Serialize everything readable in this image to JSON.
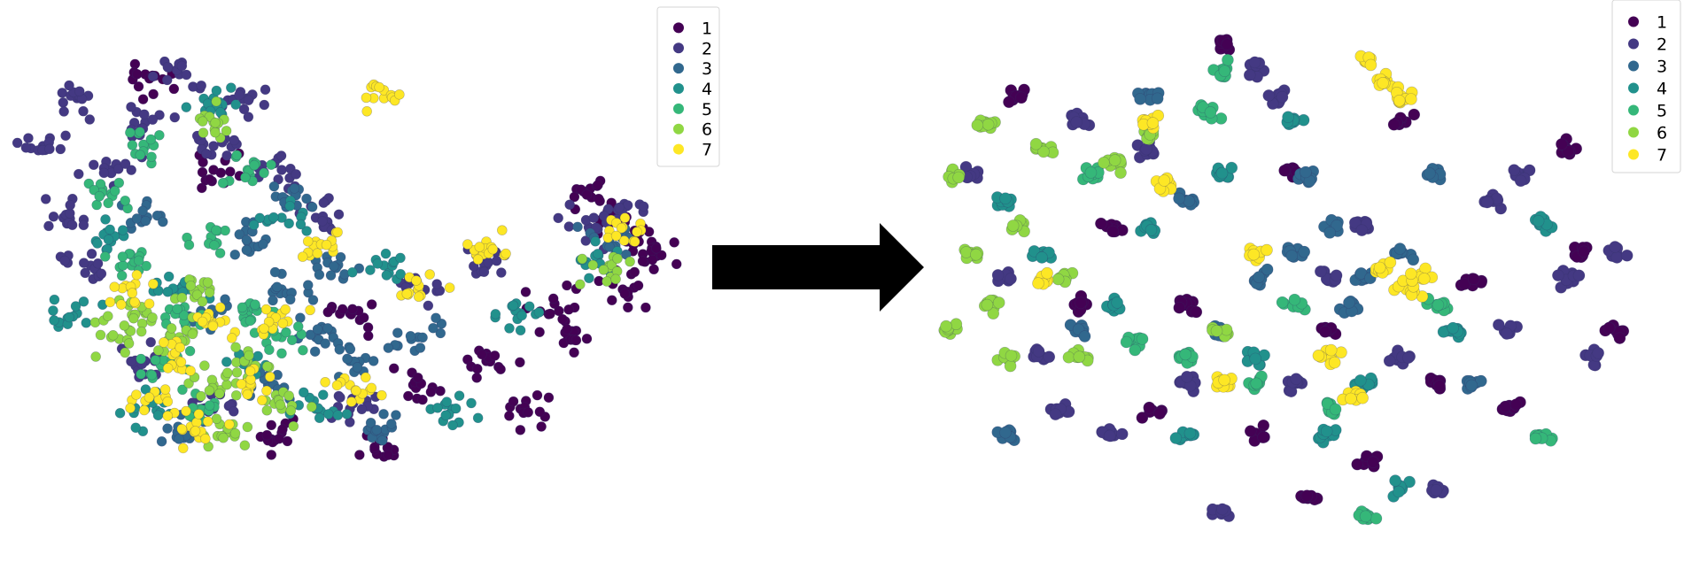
{
  "chart_data": [
    {
      "type": "scatter",
      "title": "",
      "xlabel": "",
      "ylabel": "",
      "axes_visible": false,
      "grid": false,
      "legend_placement": "top-right",
      "colormap": "viridis",
      "series": [
        {
          "name": "1",
          "color": "#440154",
          "points": [
            [
              88,
              60
            ],
            [
              92,
              55
            ],
            [
              85,
              65
            ],
            [
              90,
              45
            ],
            [
              80,
              42
            ],
            [
              70,
              30
            ],
            [
              60,
              25
            ],
            [
              55,
              10
            ],
            [
              75,
              20
            ],
            [
              40,
              15
            ],
            [
              20,
              90
            ],
            [
              30,
              70
            ],
            [
              82,
              35
            ],
            [
              95,
              52
            ],
            [
              50,
              40
            ]
          ]
        },
        {
          "name": "2",
          "color": "#443983",
          "points": [
            [
              10,
              85
            ],
            [
              20,
              80
            ],
            [
              30,
              75
            ],
            [
              15,
              70
            ],
            [
              35,
              85
            ],
            [
              25,
              90
            ],
            [
              5,
              75
            ],
            [
              40,
              70
            ],
            [
              45,
              60
            ],
            [
              12,
              50
            ],
            [
              20,
              30
            ],
            [
              30,
              20
            ],
            [
              85,
              58
            ],
            [
              90,
              62
            ],
            [
              70,
              50
            ],
            [
              60,
              45
            ],
            [
              50,
              20
            ],
            [
              8,
              60
            ]
          ]
        },
        {
          "name": "3",
          "color": "#31688e",
          "points": [
            [
              35,
              55
            ],
            [
              40,
              45
            ],
            [
              45,
              35
            ],
            [
              42,
              65
            ],
            [
              38,
              25
            ],
            [
              50,
              30
            ],
            [
              30,
              40
            ],
            [
              48,
              50
            ],
            [
              55,
              15
            ],
            [
              20,
              60
            ],
            [
              88,
              55
            ],
            [
              60,
              35
            ],
            [
              25,
              15
            ]
          ]
        },
        {
          "name": "4",
          "color": "#21918c",
          "points": [
            [
              15,
              55
            ],
            [
              25,
              45
            ],
            [
              35,
              30
            ],
            [
              10,
              40
            ],
            [
              20,
              20
            ],
            [
              40,
              60
            ],
            [
              30,
              85
            ],
            [
              45,
              20
            ],
            [
              65,
              20
            ],
            [
              75,
              40
            ],
            [
              86,
              52
            ],
            [
              55,
              50
            ]
          ]
        },
        {
          "name": "5",
          "color": "#35b779",
          "points": [
            [
              18,
              50
            ],
            [
              25,
              40
            ],
            [
              30,
              55
            ],
            [
              22,
              30
            ],
            [
              35,
              40
            ],
            [
              15,
              65
            ],
            [
              28,
              20
            ],
            [
              40,
              35
            ],
            [
              20,
              75
            ],
            [
              35,
              70
            ]
          ]
        },
        {
          "name": "6",
          "color": "#90d743",
          "points": [
            [
              25,
              35
            ],
            [
              30,
              25
            ],
            [
              20,
              40
            ],
            [
              35,
              30
            ],
            [
              28,
              45
            ],
            [
              15,
              35
            ],
            [
              40,
              20
            ],
            [
              32,
              15
            ],
            [
              88,
              50
            ],
            [
              30,
              80
            ]
          ]
        },
        {
          "name": "7",
          "color": "#fde725",
          "points": [
            [
              25,
              30
            ],
            [
              30,
              38
            ],
            [
              22,
              22
            ],
            [
              35,
              25
            ],
            [
              28,
              15
            ],
            [
              18,
              45
            ],
            [
              40,
              40
            ],
            [
              50,
              25
            ],
            [
              45,
              55
            ],
            [
              70,
              55
            ],
            [
              90,
              58
            ],
            [
              60,
              45
            ],
            [
              55,
              85
            ]
          ]
        }
      ]
    },
    {
      "type": "scatter",
      "title": "",
      "xlabel": "",
      "ylabel": "",
      "axes_visible": false,
      "grid": false,
      "legend_placement": "top-right",
      "colormap": "viridis",
      "series": [
        {
          "name": "1",
          "color": "#440154",
          "points": [
            [
              12,
              85
            ],
            [
              25,
              60
            ],
            [
              40,
              95
            ],
            [
              50,
              70
            ],
            [
              55,
              40
            ],
            [
              70,
              30
            ],
            [
              80,
              25
            ],
            [
              88,
              75
            ],
            [
              90,
              55
            ],
            [
              35,
              45
            ],
            [
              45,
              20
            ],
            [
              60,
              15
            ],
            [
              30,
              25
            ],
            [
              75,
              50
            ],
            [
              65,
              80
            ],
            [
              95,
              40
            ],
            [
              20,
              45
            ],
            [
              52,
              8
            ]
          ]
        },
        {
          "name": "2",
          "color": "#443983",
          "points": [
            [
              5,
              70
            ],
            [
              10,
              50
            ],
            [
              15,
              35
            ],
            [
              20,
              80
            ],
            [
              30,
              75
            ],
            [
              45,
              90
            ],
            [
              48,
              85
            ],
            [
              78,
              65
            ],
            [
              82,
              70
            ],
            [
              88,
              50
            ],
            [
              92,
              35
            ],
            [
              70,
              10
            ],
            [
              40,
              5
            ],
            [
              25,
              20
            ],
            [
              60,
              60
            ],
            [
              35,
              30
            ],
            [
              80,
              40
            ],
            [
              95,
              55
            ],
            [
              55,
              50
            ],
            [
              18,
              25
            ],
            [
              65,
              35
            ],
            [
              50,
              30
            ]
          ]
        },
        {
          "name": "3",
          "color": "#31688e",
          "points": [
            [
              50,
              55
            ],
            [
              55,
              60
            ],
            [
              60,
              50
            ],
            [
              58,
              45
            ],
            [
              45,
              50
            ],
            [
              65,
              55
            ],
            [
              40,
              40
            ],
            [
              35,
              65
            ],
            [
              30,
              85
            ],
            [
              10,
              20
            ],
            [
              20,
              40
            ],
            [
              70,
              70
            ],
            [
              75,
              30
            ],
            [
              52,
              70
            ]
          ]
        },
        {
          "name": "4",
          "color": "#21918c",
          "points": [
            [
              15,
              55
            ],
            [
              25,
              45
            ],
            [
              35,
              20
            ],
            [
              45,
              35
            ],
            [
              60,
              30
            ],
            [
              72,
              40
            ],
            [
              85,
              60
            ],
            [
              30,
              60
            ],
            [
              50,
              80
            ],
            [
              40,
              70
            ],
            [
              65,
              10
            ],
            [
              10,
              65
            ],
            [
              55,
              20
            ]
          ]
        },
        {
          "name": "5",
          "color": "#35b779",
          "points": [
            [
              40,
              90
            ],
            [
              38,
              82
            ],
            [
              45,
              30
            ],
            [
              55,
              25
            ],
            [
              35,
              35
            ],
            [
              70,
              45
            ],
            [
              60,
              5
            ],
            [
              22,
              70
            ],
            [
              85,
              20
            ],
            [
              50,
              45
            ],
            [
              28,
              38
            ]
          ]
        },
        {
          "name": "6",
          "color": "#90d743",
          "points": [
            [
              3,
              70
            ],
            [
              5,
              55
            ],
            [
              8,
              45
            ],
            [
              12,
              60
            ],
            [
              15,
              75
            ],
            [
              18,
              50
            ],
            [
              7,
              80
            ],
            [
              10,
              35
            ],
            [
              20,
              35
            ],
            [
              25,
              72
            ],
            [
              30,
              78
            ],
            [
              40,
              40
            ],
            [
              2,
              40
            ]
          ]
        },
        {
          "name": "7",
          "color": "#fde725",
          "points": [
            [
              60,
              92
            ],
            [
              63,
              88
            ],
            [
              65,
              85
            ],
            [
              62,
              52
            ],
            [
              66,
              48
            ],
            [
              68,
              50
            ],
            [
              15,
              50
            ],
            [
              30,
              80
            ],
            [
              45,
              55
            ],
            [
              40,
              30
            ],
            [
              55,
              35
            ],
            [
              58,
              28
            ],
            [
              32,
              68
            ]
          ]
        }
      ]
    }
  ],
  "arrow": {
    "icon": "right-arrow-icon",
    "color": "#000000"
  }
}
